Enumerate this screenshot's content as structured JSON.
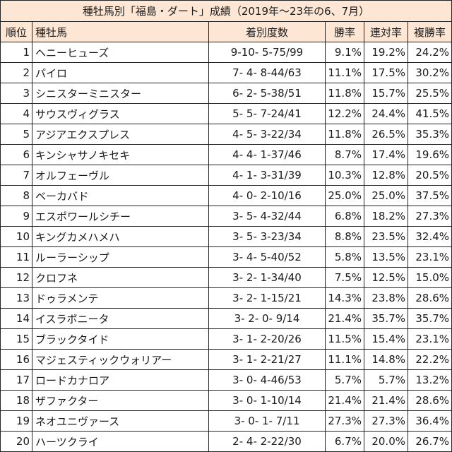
{
  "table": {
    "title": "種牡馬別「福島・ダート」成績（2019年〜23年の6、7月）",
    "headers": {
      "rank": "順位",
      "sire": "種牡馬",
      "record": "着別度数",
      "win_rate": "勝率",
      "quinella_rate": "連対率",
      "place_rate": "複勝率"
    },
    "rows": [
      {
        "rank": "1",
        "sire": "ヘニーヒューズ",
        "record": "9-10- 5-75/99",
        "win_rate": "9.1%",
        "quinella_rate": "19.2%",
        "place_rate": "24.2%"
      },
      {
        "rank": "2",
        "sire": "パイロ",
        "record": "7- 4- 8-44/63",
        "win_rate": "11.1%",
        "quinella_rate": "17.5%",
        "place_rate": "30.2%"
      },
      {
        "rank": "3",
        "sire": "シニスターミニスター",
        "record": "6- 2- 5-38/51",
        "win_rate": "11.8%",
        "quinella_rate": "15.7%",
        "place_rate": "25.5%"
      },
      {
        "rank": "4",
        "sire": "サウスヴィグラス",
        "record": "5- 5- 7-24/41",
        "win_rate": "12.2%",
        "quinella_rate": "24.4%",
        "place_rate": "41.5%"
      },
      {
        "rank": "5",
        "sire": "アジアエクスプレス",
        "record": "4- 5- 3-22/34",
        "win_rate": "11.8%",
        "quinella_rate": "26.5%",
        "place_rate": "35.3%"
      },
      {
        "rank": "6",
        "sire": "キンシャサノキセキ",
        "record": "4- 4- 1-37/46",
        "win_rate": "8.7%",
        "quinella_rate": "17.4%",
        "place_rate": "19.6%"
      },
      {
        "rank": "7",
        "sire": "オルフェーヴル",
        "record": "4- 1- 3-31/39",
        "win_rate": "10.3%",
        "quinella_rate": "12.8%",
        "place_rate": "20.5%"
      },
      {
        "rank": "8",
        "sire": "ベーカバド",
        "record": "4- 0- 2-10/16",
        "win_rate": "25.0%",
        "quinella_rate": "25.0%",
        "place_rate": "37.5%"
      },
      {
        "rank": "9",
        "sire": "エスポワールシチー",
        "record": "3- 5- 4-32/44",
        "win_rate": "6.8%",
        "quinella_rate": "18.2%",
        "place_rate": "27.3%"
      },
      {
        "rank": "10",
        "sire": "キングカメハメハ",
        "record": "3- 5- 3-23/34",
        "win_rate": "8.8%",
        "quinella_rate": "23.5%",
        "place_rate": "32.4%"
      },
      {
        "rank": "11",
        "sire": "ルーラーシップ",
        "record": "3- 4- 5-40/52",
        "win_rate": "5.8%",
        "quinella_rate": "13.5%",
        "place_rate": "23.1%"
      },
      {
        "rank": "12",
        "sire": "クロフネ",
        "record": "3- 2- 1-34/40",
        "win_rate": "7.5%",
        "quinella_rate": "12.5%",
        "place_rate": "15.0%"
      },
      {
        "rank": "13",
        "sire": "ドゥラメンテ",
        "record": "3- 2- 1-15/21",
        "win_rate": "14.3%",
        "quinella_rate": "23.8%",
        "place_rate": "28.6%"
      },
      {
        "rank": "14",
        "sire": "イスラボニータ",
        "record": "3- 2- 0- 9/14",
        "win_rate": "21.4%",
        "quinella_rate": "35.7%",
        "place_rate": "35.7%"
      },
      {
        "rank": "15",
        "sire": "ブラックタイド",
        "record": "3- 1- 2-20/26",
        "win_rate": "11.5%",
        "quinella_rate": "15.4%",
        "place_rate": "23.1%"
      },
      {
        "rank": "16",
        "sire": "マジェスティックウォリアー",
        "record": "3- 1- 2-21/27",
        "win_rate": "11.1%",
        "quinella_rate": "14.8%",
        "place_rate": "22.2%"
      },
      {
        "rank": "17",
        "sire": "ロードカナロア",
        "record": "3- 0- 4-46/53",
        "win_rate": "5.7%",
        "quinella_rate": "5.7%",
        "place_rate": "13.2%"
      },
      {
        "rank": "18",
        "sire": "ザファクター",
        "record": "3- 0- 1-10/14",
        "win_rate": "21.4%",
        "quinella_rate": "21.4%",
        "place_rate": "28.6%"
      },
      {
        "rank": "19",
        "sire": "ネオユニヴァース",
        "record": "3- 0- 1- 7/11",
        "win_rate": "27.3%",
        "quinella_rate": "27.3%",
        "place_rate": "36.4%"
      },
      {
        "rank": "20",
        "sire": "ハーツクライ",
        "record": "2- 4- 2-22/30",
        "win_rate": "6.7%",
        "quinella_rate": "20.0%",
        "place_rate": "26.7%"
      }
    ],
    "colors": {
      "header_bg": "#fde6d4",
      "border": "#222222"
    }
  }
}
